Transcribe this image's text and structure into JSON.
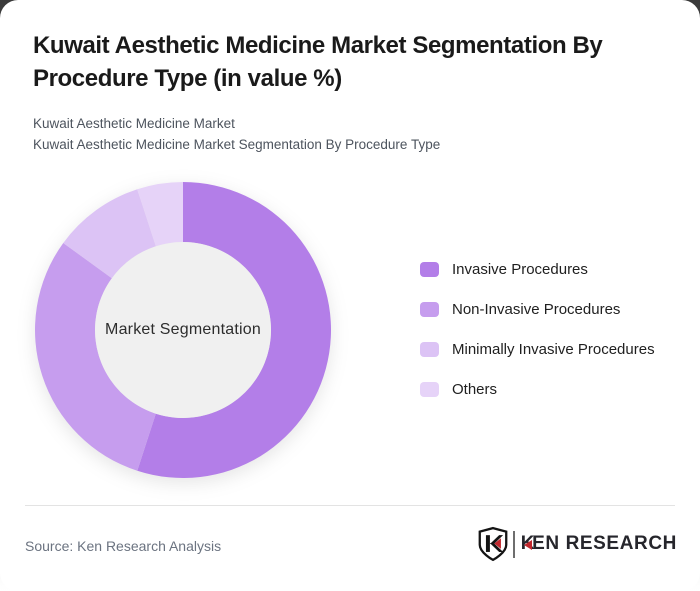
{
  "header": {
    "title_line1": "Kuwait Aesthetic Medicine Market Segmentation By",
    "title_line2": "Procedure Type (in value %)",
    "subtitle_line1": "Kuwait Aesthetic Medicine Market",
    "subtitle_line2": "Kuwait Aesthetic Medicine Market Segmentation By Procedure Type"
  },
  "chart_data": {
    "type": "pie",
    "subtype": "donut",
    "title": "Kuwait Aesthetic Medicine Market Segmentation By Procedure Type (in value %)",
    "center_label": "Market Segmentation",
    "categories": [
      "Invasive Procedures",
      "Non-Invasive Procedures",
      "Minimally Invasive Procedures",
      "Others"
    ],
    "values": [
      55,
      30,
      10,
      5
    ],
    "unit": "percent of market value",
    "colors": [
      "#b37ee8",
      "#c69dee",
      "#dcc3f5",
      "#e6d3f8"
    ],
    "center_fill": "#f0f0f0",
    "start_angle_deg": 0,
    "direction": "clockwise",
    "legend_position": "right"
  },
  "footer": {
    "source": "Source: Ken Research Analysis",
    "logo_text_k": "K",
    "logo_text_rest": "EN RESEARCH"
  },
  "colors": {
    "backdrop_top": "#3a3a3a",
    "card_background": "#ffffff",
    "brand_red": "#c0272d",
    "divider": "#e3e3e3"
  }
}
